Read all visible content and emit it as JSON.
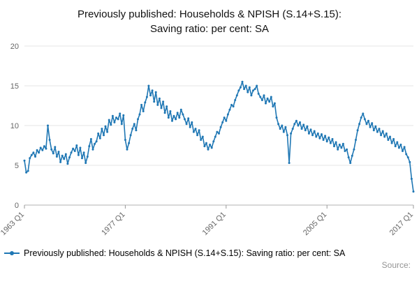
{
  "page": {
    "title": "Previously published: Households & NPISH (S.14+S.15):\nSaving ratio: per cent: SA"
  },
  "legend": {
    "label": "Previously published: Households & NPISH (S.14+S.15): Saving ratio: per cent: SA"
  },
  "footer": {
    "source_label": "Source:"
  },
  "chart_data": {
    "type": "line",
    "title": "Previously published: Households & NPISH (S.14+S.15): Saving ratio: per cent: SA",
    "ylabel": "",
    "xlabel": "",
    "ylim": [
      0,
      20
    ],
    "y_ticks": [
      0,
      5,
      10,
      15,
      20
    ],
    "frequency": "quarterly",
    "x_start": "1963 Q1",
    "x_end": "2017 Q1",
    "x_ticks": [
      {
        "index": 0,
        "label": "1963 Q1"
      },
      {
        "index": 56,
        "label": "1977 Q1"
      },
      {
        "index": 112,
        "label": "1991 Q1"
      },
      {
        "index": 168,
        "label": "2005 Q1"
      },
      {
        "index": 216,
        "label": "2017 Q1"
      }
    ],
    "grid": true,
    "legend_position": "bottom-left",
    "color": "#1f77b4",
    "series": [
      {
        "name": "Previously published: Households & NPISH (S.14+S.15): Saving ratio: per cent: SA",
        "values": [
          5.6,
          4.1,
          4.3,
          5.9,
          6.3,
          6.6,
          6.1,
          6.9,
          6.6,
          7.2,
          6.9,
          7.4,
          7.1,
          10.0,
          8.2,
          7.0,
          6.5,
          7.3,
          6.1,
          6.7,
          5.4,
          6.2,
          5.8,
          6.4,
          5.2,
          6.0,
          6.6,
          7.1,
          6.8,
          7.5,
          6.3,
          7.2,
          5.9,
          6.6,
          5.3,
          6.1,
          7.4,
          8.3,
          7.0,
          7.7,
          8.0,
          9.0,
          8.4,
          9.6,
          8.8,
          9.9,
          9.2,
          10.7,
          10.1,
          11.2,
          10.4,
          11.0,
          10.8,
          11.5,
          10.2,
          11.3,
          8.2,
          7.0,
          7.8,
          8.8,
          9.6,
          10.2,
          9.4,
          10.8,
          11.4,
          12.6,
          11.8,
          12.9,
          13.6,
          15.0,
          13.8,
          14.4,
          13.0,
          14.2,
          12.6,
          13.4,
          12.2,
          13.0,
          11.6,
          12.4,
          11.0,
          11.8,
          10.6,
          11.2,
          10.8,
          11.6,
          11.0,
          12.0,
          11.4,
          10.8,
          10.2,
          10.9,
          9.8,
          10.4,
          9.2,
          9.6,
          8.8,
          9.4,
          8.2,
          8.6,
          7.4,
          7.8,
          7.0,
          7.6,
          7.2,
          8.0,
          8.6,
          9.2,
          9.0,
          9.8,
          10.4,
          11.0,
          10.6,
          11.4,
          12.0,
          12.6,
          12.4,
          13.2,
          13.8,
          14.4,
          14.8,
          15.5,
          14.6,
          15.0,
          14.2,
          14.8,
          13.8,
          14.4,
          14.6,
          15.0,
          14.0,
          13.6,
          13.2,
          13.8,
          12.8,
          13.4,
          13.0,
          13.6,
          12.4,
          12.8,
          11.0,
          10.2,
          9.6,
          10.0,
          9.2,
          9.8,
          8.8,
          5.3,
          9.0,
          9.6,
          10.2,
          10.6,
          10.0,
          10.4,
          9.6,
          10.1,
          9.4,
          9.9,
          9.0,
          9.5,
          8.8,
          9.3,
          8.6,
          9.0,
          8.4,
          8.9,
          8.2,
          8.7,
          8.0,
          8.5,
          7.8,
          8.3,
          7.4,
          7.9,
          7.0,
          7.6,
          7.2,
          7.7,
          6.8,
          7.0,
          6.0,
          5.3,
          6.2,
          7.0,
          8.2,
          9.4,
          10.2,
          11.0,
          11.5,
          10.8,
          10.2,
          10.6,
          9.8,
          10.3,
          9.4,
          9.9,
          9.2,
          9.6,
          8.8,
          9.3,
          8.6,
          9.0,
          8.2,
          8.6,
          7.8,
          8.3,
          7.4,
          7.9,
          7.2,
          7.6,
          6.8,
          7.3,
          6.4,
          6.0,
          5.4,
          3.3,
          1.7
        ]
      }
    ]
  }
}
